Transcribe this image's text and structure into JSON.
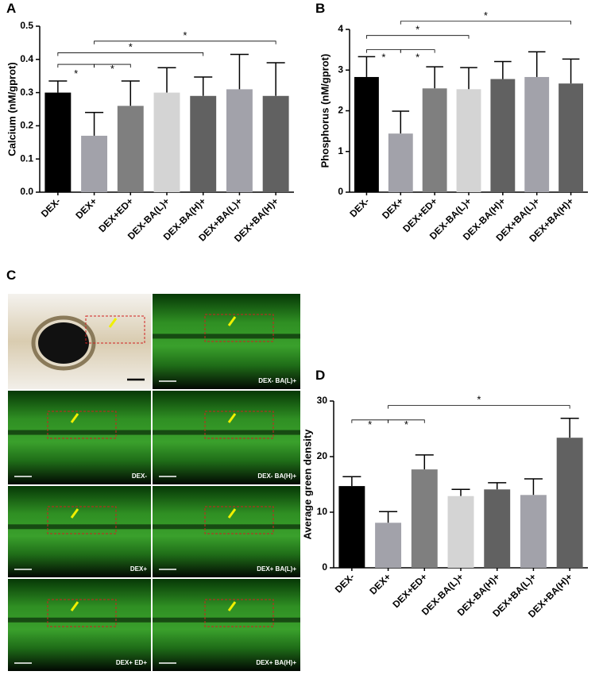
{
  "chart_data": [
    {
      "type": "bar",
      "panel": "A",
      "y_label": "Calcium (nM/gprot)",
      "categories": [
        "DEX-",
        "DEX+",
        "DEX+ED+",
        "DEX-BA(L)+",
        "DEX-BA(H)+",
        "DEX+BA(L)+",
        "DEX+BA(H)+"
      ],
      "values": [
        0.3,
        0.17,
        0.26,
        0.3,
        0.29,
        0.31,
        0.29
      ],
      "errors": [
        0.035,
        0.07,
        0.075,
        0.075,
        0.057,
        0.105,
        0.1
      ],
      "colors": [
        "#000000",
        "#a2a2aa",
        "#7f7f7f",
        "#d4d4d4",
        "#616161",
        "#a2a2aa",
        "#616161"
      ],
      "ylim": [
        0,
        0.5
      ],
      "yticks": [
        {
          "value": 0,
          "label": "0.0"
        },
        0.1,
        0.2,
        0.3,
        0.4,
        0.5
      ],
      "annotations": [
        "*",
        "*",
        "*",
        "*"
      ]
    },
    {
      "type": "bar",
      "panel": "B",
      "y_label": "Phosphorus (nM/gprot)",
      "categories": [
        "DEX-",
        "DEX+",
        "DEX+ED+",
        "DEX-BA(L)+",
        "DEX-BA(H)+",
        "DEX+BA(L)+",
        "DEX+BA(H)+"
      ],
      "values": [
        2.83,
        1.44,
        2.55,
        2.53,
        2.78,
        2.83,
        2.67
      ],
      "errors": [
        0.5,
        0.55,
        0.53,
        0.53,
        0.43,
        0.62,
        0.6
      ],
      "colors": [
        "#000000",
        "#a2a2aa",
        "#7f7f7f",
        "#d4d4d4",
        "#616161",
        "#a2a2aa",
        "#616161"
      ],
      "ylim": [
        0,
        4
      ],
      "yticks": [
        0,
        1,
        2,
        3,
        4
      ],
      "annotations": [
        "*",
        "*",
        "*",
        "*"
      ]
    },
    {
      "type": "bar",
      "panel": "D",
      "y_label": "Average green density",
      "categories": [
        "DEX-",
        "DEX+",
        "DEX+ED+",
        "DEX-BA(L)+",
        "DEX-BA(H)+",
        "DEX+BA(L)+",
        "DEX+BA(H)+"
      ],
      "values": [
        14.7,
        8.1,
        17.7,
        12.9,
        14.1,
        13.1,
        23.4
      ],
      "errors": [
        1.7,
        2.0,
        2.6,
        1.2,
        1.2,
        2.9,
        3.5
      ],
      "colors": [
        "#000000",
        "#a2a2aa",
        "#7f7f7f",
        "#d4d4d4",
        "#616161",
        "#a2a2aa",
        "#616161"
      ],
      "ylim": [
        0,
        30
      ],
      "yticks": [
        0,
        10,
        20,
        30
      ],
      "annotations": [
        "*",
        "*",
        "*"
      ]
    }
  ],
  "image_panel": {
    "panel": "C",
    "captions": [
      "DEX- BA(L)+",
      "DEX-",
      "DEX- BA(H)+",
      "DEX+",
      "DEX+ BA(L)+",
      "DEX+ ED+",
      "DEX+ BA(H)+"
    ]
  }
}
